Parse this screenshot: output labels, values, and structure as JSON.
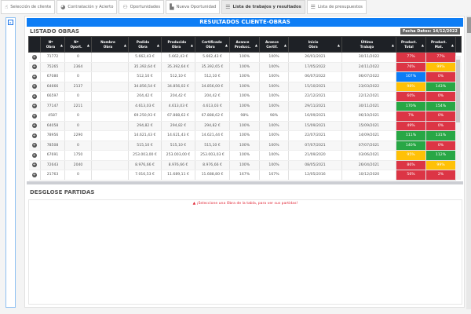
{
  "tabs": [
    {
      "label": "Selección de cliente",
      "icon": "hand-pointer-icon",
      "active": false
    },
    {
      "label": "Contratación y Acierto",
      "icon": "pie-chart-icon",
      "active": false
    },
    {
      "label": "Oportunidades",
      "icon": "users-icon",
      "active": false
    },
    {
      "label": "Nueva Oportunidad",
      "icon": "building-icon",
      "active": false
    },
    {
      "label": "Lista de trabajos y resultados",
      "icon": "list-icon",
      "active": true
    },
    {
      "label": "Lista de presupuestos",
      "icon": "list-icon",
      "active": false
    }
  ],
  "title": "RESULTADOS CLIENTE-OBRAS",
  "listado": {
    "heading": "LISTADO OBRAS",
    "fecha": "Fecha Datos: 14/12/2022",
    "columns": [
      "Nº Obra",
      "Nº Oport.",
      "Nombre Obra",
      "Pedido Obra",
      "Producido Obra",
      "Certificado Obra",
      "Avance Producc.",
      "Avance Certif.",
      "Inicio Obra",
      "Último Trabajo",
      "Product. Total",
      "Product. Mat."
    ],
    "rows": [
      [
        "71772",
        "0",
        "",
        "5.662,43 €",
        "5.662,43 €",
        "5.662,43 €",
        "100%",
        "100%",
        "26/01/2021",
        "30/11/2022",
        "77%",
        "77%"
      ],
      [
        "75265",
        "2364",
        "",
        "35.392,64 €",
        "35.392,64 €",
        "35.392,65 €",
        "100%",
        "100%",
        "17/05/2022",
        "24/11/2022",
        "76%",
        "99%"
      ],
      [
        "67080",
        "0",
        "",
        "512,10 €",
        "512,10 €",
        "512,10 €",
        "100%",
        "100%",
        "06/07/2022",
        "06/07/2022",
        "107%",
        "0%"
      ],
      [
        "64666",
        "2137",
        "",
        "34.856,54 €",
        "34.856,02 €",
        "34.856,00 €",
        "100%",
        "100%",
        "15/10/2021",
        "23/03/2022",
        "98%",
        "143%"
      ],
      [
        "66597",
        "0",
        "",
        "204,42 €",
        "204,42 €",
        "204,42 €",
        "100%",
        "100%",
        "22/12/2021",
        "22/12/2021",
        "60%",
        "0%"
      ],
      [
        "77147",
        "2211",
        "",
        "4.613,03 €",
        "4.613,03 €",
        "4.613,03 €",
        "100%",
        "100%",
        "29/11/2021",
        "30/11/2021",
        "170%",
        "154%"
      ],
      [
        "4587",
        "0",
        "",
        "69.250,93 €",
        "67.888,62 €",
        "67.888,62 €",
        "98%",
        "98%",
        "16/09/2021",
        "06/10/2021",
        "7%",
        "0%"
      ],
      [
        "64058",
        "0",
        "",
        "294,82 €",
        "294,82 €",
        "294,82 €",
        "100%",
        "100%",
        "15/09/2021",
        "15/09/2021",
        "49%",
        "0%"
      ],
      [
        "78956",
        "2290",
        "",
        "14.621,43 €",
        "14.621,43 €",
        "14.621,44 €",
        "100%",
        "100%",
        "22/07/2021",
        "14/09/2021",
        "111%",
        "131%"
      ],
      [
        "78508",
        "0",
        "",
        "515,10 €",
        "515,10 €",
        "515,10 €",
        "100%",
        "100%",
        "07/07/2021",
        "07/07/2021",
        "140%",
        "0%"
      ],
      [
        "67691",
        "1750",
        "",
        "253.003,00 €",
        "253.003,00 €",
        "253.003,03 €",
        "100%",
        "100%",
        "21/09/2020",
        "03/06/2021",
        "95%",
        "112%"
      ],
      [
        "72643",
        "2040",
        "",
        "8.976,66 €",
        "8.976,66 €",
        "8.976,66 €",
        "100%",
        "100%",
        "08/05/2021",
        "26/04/2021",
        "86%",
        "99%"
      ],
      [
        "21763",
        "0",
        "",
        "7.016,53 €",
        "11.689,11 €",
        "11.688,80 €",
        "167%",
        "167%",
        "12/05/2016",
        "10/12/2020",
        "56%",
        "2%"
      ]
    ],
    "pct_colors": [
      [
        "#dc3545",
        "#dc3545"
      ],
      [
        "#dc3545",
        "#ffc107"
      ],
      [
        "#0d7df5",
        "#dc3545"
      ],
      [
        "#ffc107",
        "#28a745"
      ],
      [
        "#dc3545",
        "#dc3545"
      ],
      [
        "#28a745",
        "#28a745"
      ],
      [
        "#dc3545",
        "#dc3545"
      ],
      [
        "#dc3545",
        "#dc3545"
      ],
      [
        "#28a745",
        "#28a745"
      ],
      [
        "#28a745",
        "#dc3545"
      ],
      [
        "#ffc107",
        "#28a745"
      ],
      [
        "#dc3545",
        "#ffc107"
      ],
      [
        "#dc3545",
        "#dc3545"
      ]
    ]
  },
  "desglose": {
    "heading": "DESGLOSE PARTIDAS",
    "message": "¡Seleccione una Obra de la tabla, para ver sus partidas!"
  }
}
